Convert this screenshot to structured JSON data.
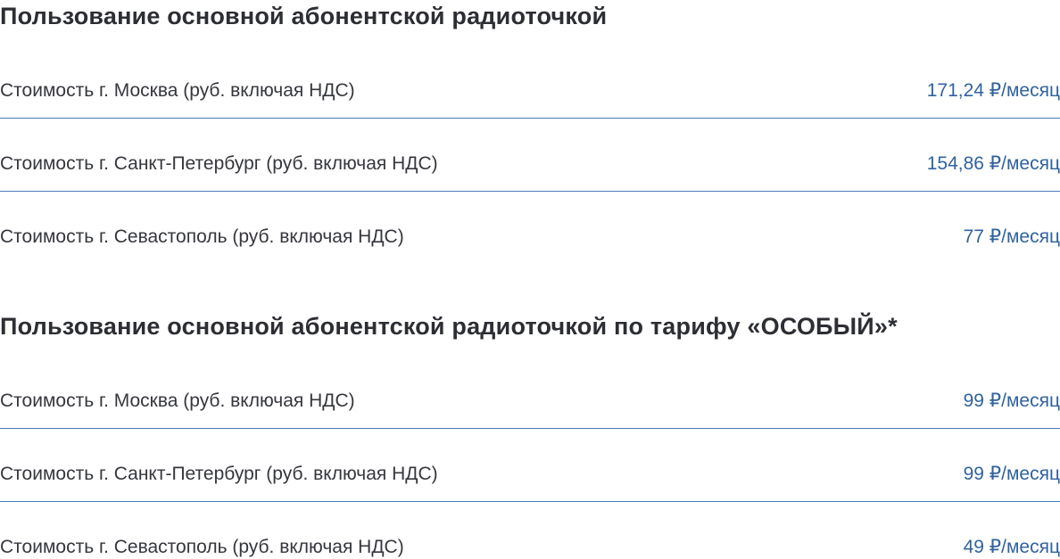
{
  "colors": {
    "background": "#ffffff",
    "heading_text": "#2d2e33",
    "label_text": "#36373d",
    "price_text": "#30629f",
    "divider": "#4a7cb5"
  },
  "sections": [
    {
      "title": "Пользование основной абонентской радиоточкой",
      "rows": [
        {
          "label": "Стоимость г. Москва (руб. включая НДС)",
          "value": "171,24 ₽/месяц"
        },
        {
          "label": "Стоимость г. Санкт-Петербург (руб. включая НДС)",
          "value": "154,86 ₽/месяц"
        },
        {
          "label": "Стоимость г. Севастополь (руб. включая НДС)",
          "value": "77 ₽/месяц"
        }
      ]
    },
    {
      "title": "Пользование основной абонентской радиоточкой по тарифу «ОСОБЫЙ»*",
      "rows": [
        {
          "label": "Стоимость г. Москва (руб. включая НДС)",
          "value": "99 ₽/месяц"
        },
        {
          "label": "Стоимость г. Санкт-Петербург (руб. включая НДС)",
          "value": "99 ₽/месяц"
        },
        {
          "label": "Стоимость г. Севастополь (руб. включая НДС)",
          "value": "49 ₽/месяц"
        }
      ]
    }
  ]
}
